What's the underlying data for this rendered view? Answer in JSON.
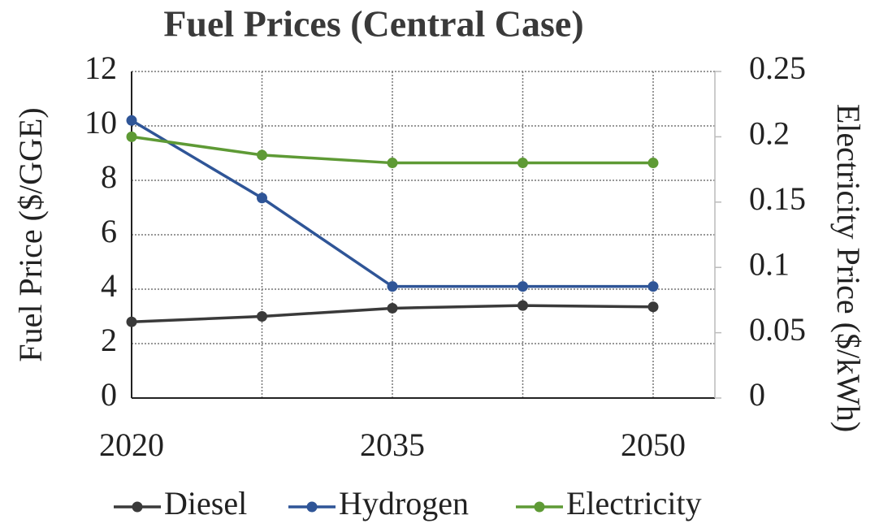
{
  "chart_data": {
    "type": "line",
    "title": "Fuel Prices (Central Case)",
    "y_label": "Fuel Price ($/GGE)",
    "y2_label": "Electricity Price ($/kWh)",
    "categories": [
      "2020",
      null,
      "2035",
      null,
      "2050"
    ],
    "ylim": [
      0,
      12
    ],
    "yticks": [
      0,
      2,
      4,
      6,
      8,
      10,
      12
    ],
    "y2lim": [
      0,
      0.25
    ],
    "y2ticks": [
      0,
      0.05,
      0.1,
      0.15,
      0.2,
      0.25
    ],
    "grid": true,
    "legend": "bottom",
    "series": [
      {
        "name": "Diesel",
        "color": "#3a3a3a",
        "values": [
          2.8,
          3.0,
          3.3,
          3.4,
          3.35
        ]
      },
      {
        "name": "Hydrogen",
        "color": "#2f5597",
        "values": [
          10.2,
          7.35,
          4.1,
          4.1,
          4.1
        ]
      },
      {
        "name": "Electricity",
        "color": "#5e9a35",
        "values": [
          0.2,
          0.186,
          0.18,
          0.18,
          0.18
        ],
        "axis": "y2"
      }
    ]
  }
}
